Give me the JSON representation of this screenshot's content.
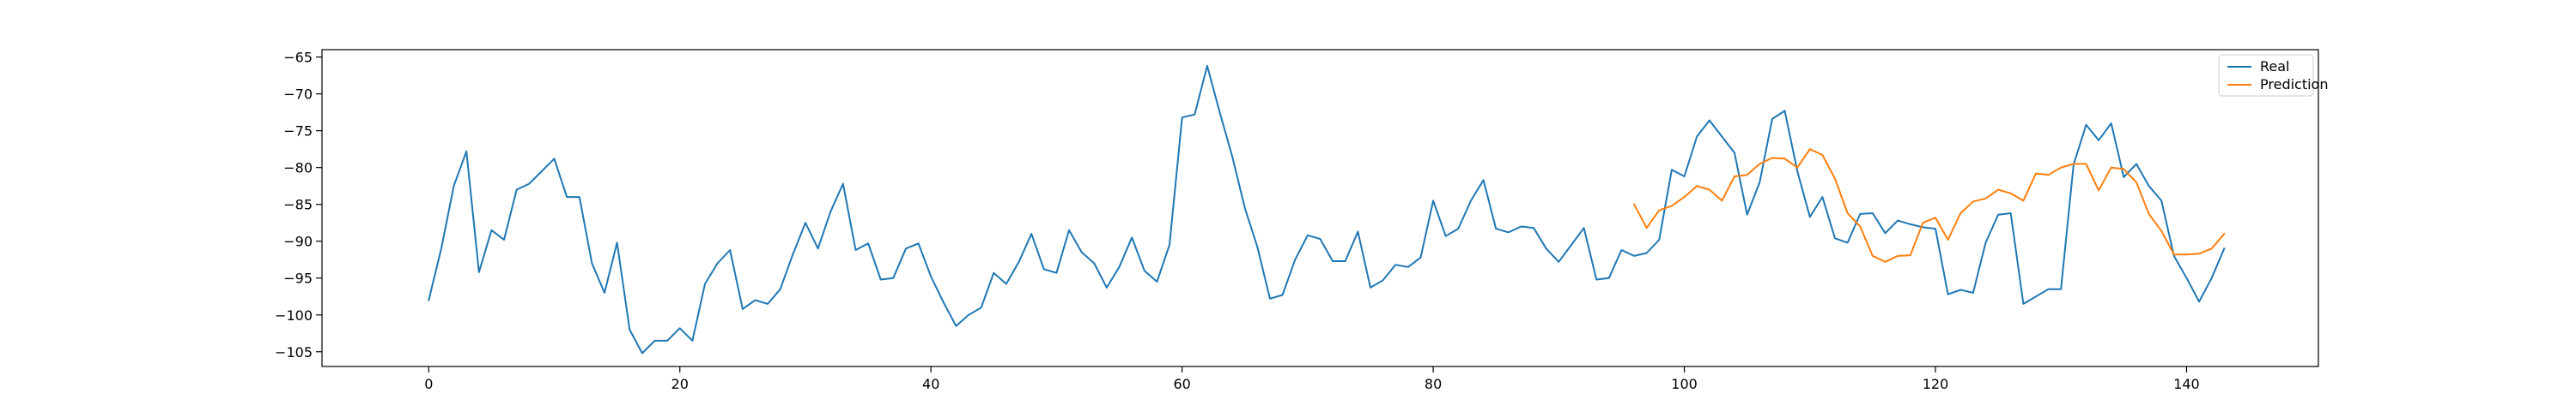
{
  "chart_data": {
    "type": "line",
    "title": "",
    "xlabel": "",
    "ylabel": "",
    "xlim": [
      -8.5,
      150.5
    ],
    "ylim": [
      -107,
      -64
    ],
    "xticks": [
      0,
      20,
      40,
      60,
      80,
      100,
      120,
      140
    ],
    "yticks": [
      -105,
      -100,
      -95,
      -90,
      -85,
      -80,
      -75,
      -70,
      -65
    ],
    "grid": false,
    "legend_position": "top-right",
    "series": [
      {
        "name": "Real",
        "color": "#1f77b4",
        "x_start": 0,
        "values": [
          -98.0,
          -91.0,
          -82.5,
          -77.8,
          -94.2,
          -88.5,
          -89.8,
          -83.0,
          -82.2,
          -80.5,
          -78.8,
          -84.0,
          -84.0,
          -93.0,
          -97.0,
          -90.2,
          -102.0,
          -105.2,
          -103.5,
          -103.5,
          -101.8,
          -103.5,
          -95.8,
          -93.0,
          -91.2,
          -99.2,
          -98.0,
          -98.5,
          -96.5,
          -91.8,
          -87.5,
          -91.0,
          -86.0,
          -82.2,
          -91.2,
          -90.3,
          -95.2,
          -95.0,
          -91.0,
          -90.3,
          -94.8,
          -98.3,
          -101.5,
          -100.0,
          -99.0,
          -94.3,
          -95.8,
          -92.8,
          -89.0,
          -93.8,
          -94.3,
          -88.5,
          -91.5,
          -93.0,
          -96.3,
          -93.5,
          -89.5,
          -94.0,
          -95.5,
          -90.5,
          -73.2,
          -72.8,
          -66.2,
          -72.5,
          -78.5,
          -85.5,
          -90.8,
          -97.8,
          -97.3,
          -92.5,
          -89.2,
          -89.7,
          -92.7,
          -92.7,
          -88.7,
          -96.3,
          -95.3,
          -93.2,
          -93.5,
          -92.2,
          -84.5,
          -89.3,
          -88.3,
          -84.5,
          -81.7,
          -88.3,
          -88.8,
          -88.0,
          -88.2,
          -91.0,
          -92.8,
          -90.5,
          -88.2,
          -95.2,
          -95.0,
          -91.2,
          -92.0,
          -91.6,
          -89.8,
          -80.3,
          -81.2,
          -75.8,
          -73.6,
          -75.8,
          -78.0,
          -86.4,
          -82.0,
          -73.4,
          -72.3,
          -80.5,
          -86.7,
          -84.0,
          -89.6,
          -90.2,
          -86.3,
          -86.2,
          -88.9,
          -87.2,
          -87.7,
          -88.1,
          -88.3,
          -97.2,
          -96.6,
          -97.0,
          -90.2,
          -86.4,
          -86.2,
          -98.5,
          -97.5,
          -96.5,
          -96.5,
          -79.6,
          -74.2,
          -76.3,
          -74.0,
          -81.3,
          -79.5,
          -82.5,
          -84.5,
          -92.0,
          -95.0,
          -98.2,
          -95.0,
          -91.0
        ]
      },
      {
        "name": "Prediction",
        "color": "#ff7f0e",
        "x_start": 96,
        "values": [
          -85.0,
          -88.2,
          -85.8,
          -85.2,
          -84.0,
          -82.5,
          -83.0,
          -84.5,
          -81.2,
          -81.0,
          -79.5,
          -78.7,
          -78.8,
          -80.0,
          -77.5,
          -78.3,
          -81.5,
          -86.2,
          -88.0,
          -92.0,
          -92.8,
          -92.0,
          -91.9,
          -87.5,
          -86.8,
          -89.8,
          -86.2,
          -84.6,
          -84.2,
          -83.0,
          -83.5,
          -84.5,
          -80.8,
          -81.0,
          -80.0,
          -79.5,
          -79.5,
          -83.1,
          -80.0,
          -80.2,
          -82.0,
          -86.3,
          -88.6,
          -91.8,
          -91.8,
          -91.7,
          -91.0,
          -89.0
        ]
      }
    ]
  }
}
